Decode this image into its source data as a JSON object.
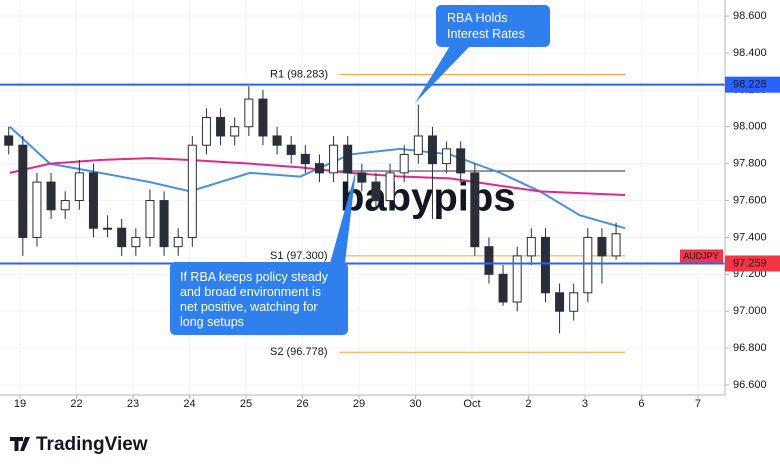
{
  "chart_data": {
    "type": "candlestick",
    "symbol": "AUDJPY",
    "brand": "TradingView",
    "watermark": "babypips",
    "xlim": [
      -0.354,
      12.478
    ],
    "ylim": [
      96.546,
      98.687
    ],
    "xticks": [
      {
        "value": 0,
        "label": "19"
      },
      {
        "value": 1,
        "label": "22"
      },
      {
        "value": 2,
        "label": "23"
      },
      {
        "value": 3,
        "label": "24"
      },
      {
        "value": 4,
        "label": "25"
      },
      {
        "value": 5,
        "label": "26"
      },
      {
        "value": 6,
        "label": "29"
      },
      {
        "value": 7,
        "label": "30"
      },
      {
        "value": 8,
        "label": "Oct"
      },
      {
        "value": 9,
        "label": "2"
      },
      {
        "value": 10,
        "label": "3"
      },
      {
        "value": 11,
        "label": "6"
      },
      {
        "value": 12,
        "label": "7"
      }
    ],
    "yticks": [
      {
        "value": 96.6,
        "label": "96.600"
      },
      {
        "value": 96.8,
        "label": "96.800"
      },
      {
        "value": 97.0,
        "label": "97.000"
      },
      {
        "value": 97.2,
        "label": "97.200"
      },
      {
        "value": 97.4,
        "label": "97.400"
      },
      {
        "value": 97.6,
        "label": "97.600"
      },
      {
        "value": 97.8,
        "label": "97.800"
      },
      {
        "value": 98.0,
        "label": "98.000"
      },
      {
        "value": 98.2,
        "label": "98.200"
      },
      {
        "value": 98.4,
        "label": "98.400"
      },
      {
        "value": 98.6,
        "label": "98.600"
      }
    ],
    "x": [
      -0.2,
      0.05,
      0.3,
      0.55,
      0.8,
      1.05,
      1.3,
      1.55,
      1.8,
      2.05,
      2.3,
      2.55,
      2.8,
      3.05,
      3.3,
      3.55,
      3.8,
      4.05,
      4.3,
      4.55,
      4.8,
      5.05,
      5.3,
      5.55,
      5.8,
      6.05,
      6.3,
      6.55,
      6.8,
      7.05,
      7.3,
      7.55,
      7.8,
      8.05,
      8.3,
      8.55,
      8.8,
      9.05,
      9.3,
      9.55,
      9.8,
      10.05,
      10.3,
      10.55
    ],
    "open": [
      97.95,
      97.9,
      97.4,
      97.7,
      97.55,
      97.6,
      97.75,
      97.45,
      97.45,
      97.35,
      97.4,
      97.6,
      97.35,
      97.4,
      97.9,
      98.05,
      97.95,
      98.0,
      98.15,
      97.95,
      97.9,
      97.85,
      97.8,
      97.75,
      97.9,
      97.75,
      97.7,
      97.6,
      97.75,
      97.85,
      97.95,
      97.8,
      97.88,
      97.75,
      97.35,
      97.2,
      97.05,
      97.3,
      97.4,
      97.1,
      97.0,
      97.1,
      97.4,
      97.3
    ],
    "high": [
      98.0,
      97.95,
      97.75,
      97.75,
      97.65,
      97.82,
      97.8,
      97.52,
      97.5,
      97.45,
      97.66,
      97.65,
      97.45,
      97.95,
      98.1,
      98.1,
      98.05,
      98.22,
      98.2,
      98.0,
      97.95,
      97.9,
      97.85,
      97.95,
      97.95,
      97.8,
      97.75,
      97.8,
      97.9,
      98.12,
      98.0,
      97.92,
      97.92,
      97.8,
      97.4,
      97.25,
      97.35,
      97.45,
      97.45,
      97.15,
      97.15,
      97.45,
      97.45,
      97.48
    ],
    "low": [
      97.85,
      97.3,
      97.35,
      97.5,
      97.5,
      97.55,
      97.4,
      97.4,
      97.3,
      97.3,
      97.35,
      97.3,
      97.3,
      97.35,
      97.85,
      97.9,
      97.9,
      97.95,
      97.9,
      97.85,
      97.8,
      97.75,
      97.7,
      97.7,
      97.7,
      97.65,
      97.55,
      97.55,
      97.7,
      97.8,
      97.5,
      97.75,
      97.7,
      97.3,
      97.15,
      97.03,
      97.0,
      97.25,
      97.05,
      96.88,
      96.95,
      97.05,
      97.15,
      97.28
    ],
    "close": [
      97.9,
      97.4,
      97.7,
      97.55,
      97.6,
      97.75,
      97.45,
      97.45,
      97.35,
      97.4,
      97.6,
      97.35,
      97.4,
      97.9,
      98.05,
      97.95,
      98.0,
      98.15,
      97.95,
      97.9,
      97.85,
      97.8,
      97.75,
      97.9,
      97.75,
      97.7,
      97.6,
      97.75,
      97.85,
      97.95,
      97.8,
      97.88,
      97.75,
      97.35,
      97.2,
      97.05,
      97.3,
      97.4,
      97.1,
      97.0,
      97.1,
      97.4,
      97.3,
      97.42
    ],
    "up_color": "#ffffff",
    "down_color": "#2a2e39",
    "wick_color": "#2a2e39",
    "lines": [
      {
        "color": "#4a90e2",
        "x": [
          -0.18,
          0.53,
          1.42,
          2.3,
          3.01,
          4.07,
          4.96,
          5.84,
          6.73,
          7.61,
          8.5,
          9.2,
          9.91,
          10.71
        ],
        "values": [
          98.0,
          97.8,
          97.75,
          97.7,
          97.65,
          97.75,
          97.73,
          97.85,
          97.88,
          97.85,
          97.75,
          97.65,
          97.52,
          97.45
        ]
      },
      {
        "color": "#e0298a",
        "x": [
          -0.18,
          0.53,
          1.42,
          2.3,
          3.01,
          4.07,
          4.96,
          5.84,
          6.73,
          7.61,
          8.5,
          9.2,
          9.91,
          10.71
        ],
        "values": [
          97.75,
          97.8,
          97.82,
          97.83,
          97.82,
          97.8,
          97.78,
          97.75,
          97.73,
          97.72,
          97.68,
          97.65,
          97.64,
          97.63
        ]
      }
    ],
    "levels": [
      {
        "value": 98.228,
        "label": "98.228",
        "color": "#2962ff",
        "tag_color": "#2962ff"
      },
      {
        "value": 97.259,
        "label": "97.259",
        "color": "#2962ff",
        "tag_color": "#f23645"
      }
    ],
    "pivots": [
      {
        "value": 98.283,
        "label": "R1 (98.283)",
        "color": "#f7a440"
      },
      {
        "value": 97.76,
        "color": "#2a2e39"
      },
      {
        "value": 97.3,
        "label": "S1 (97.300)",
        "color": "#f7a440"
      },
      {
        "value": 96.778,
        "label": "S2 (96.778)",
        "color": "#f7a440"
      }
    ],
    "pivot_start": 5.65,
    "pivot_end": 10.71,
    "annotations": [
      {
        "lines": [
          "RBA Holds",
          "Interest Rates"
        ]
      },
      {
        "lines": [
          "If RBA keeps policy steady",
          "and broad environment is",
          "net positive, watching for",
          "long setups"
        ]
      }
    ]
  }
}
